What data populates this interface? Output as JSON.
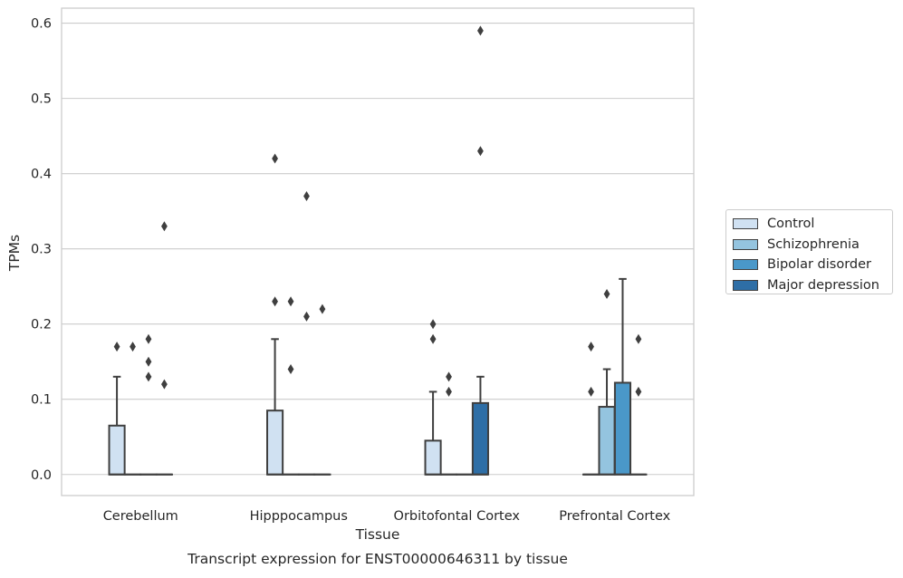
{
  "chart_data": {
    "type": "bar",
    "xlabel": "Tissue",
    "ylabel": "TPMs",
    "caption": "Transcript expression for ENST00000646311 by tissue",
    "ylim": [
      -0.028,
      0.62
    ],
    "yticks": [
      0.0,
      0.1,
      0.2,
      0.3,
      0.4,
      0.5,
      0.6
    ],
    "ytick_labels": [
      "0.0",
      "0.1",
      "0.2",
      "0.3",
      "0.4",
      "0.5",
      "0.6"
    ],
    "grid": "horizontal",
    "legend_position": "right",
    "categories": [
      "Cerebellum",
      "Hipppocampus",
      "Orbitofontal Cortex",
      "Prefrontal Cortex"
    ],
    "series": [
      {
        "name": "Control",
        "color": "#d0e1f2",
        "boxes": [
          {
            "q1": 0.0,
            "median": 0.0,
            "q3": 0.065,
            "whisker_low": 0.0,
            "whisker_high": 0.13,
            "outliers": [
              0.17
            ]
          },
          {
            "q1": 0.0,
            "median": 0.0,
            "q3": 0.085,
            "whisker_low": 0.0,
            "whisker_high": 0.18,
            "outliers": [
              0.23,
              0.42
            ]
          },
          {
            "q1": 0.0,
            "median": 0.0,
            "q3": 0.045,
            "whisker_low": 0.0,
            "whisker_high": 0.11,
            "outliers": [
              0.18,
              0.2
            ]
          },
          {
            "q1": 0.0,
            "median": 0.0,
            "q3": 0.0,
            "whisker_low": 0.0,
            "whisker_high": 0.0,
            "outliers": [
              0.11,
              0.17
            ]
          }
        ]
      },
      {
        "name": "Schizophrenia",
        "color": "#94c4df",
        "boxes": [
          {
            "q1": 0.0,
            "median": 0.0,
            "q3": 0.0,
            "whisker_low": 0.0,
            "whisker_high": 0.0,
            "outliers": [
              0.17
            ]
          },
          {
            "q1": 0.0,
            "median": 0.0,
            "q3": 0.0,
            "whisker_low": 0.0,
            "whisker_high": 0.0,
            "outliers": [
              0.14,
              0.23
            ]
          },
          {
            "q1": 0.0,
            "median": 0.0,
            "q3": 0.0,
            "whisker_low": 0.0,
            "whisker_high": 0.0,
            "outliers": [
              0.11,
              0.13
            ]
          },
          {
            "q1": 0.0,
            "median": 0.0,
            "q3": 0.09,
            "whisker_low": 0.0,
            "whisker_high": 0.14,
            "outliers": [
              0.24
            ]
          }
        ]
      },
      {
        "name": "Bipolar disorder",
        "color": "#4a98c9",
        "boxes": [
          {
            "q1": 0.0,
            "median": 0.0,
            "q3": 0.0,
            "whisker_low": 0.0,
            "whisker_high": 0.0,
            "outliers": [
              0.13,
              0.15,
              0.18
            ]
          },
          {
            "q1": 0.0,
            "median": 0.0,
            "q3": 0.0,
            "whisker_low": 0.0,
            "whisker_high": 0.0,
            "outliers": [
              0.21,
              0.37
            ]
          },
          {
            "q1": 0.0,
            "median": 0.0,
            "q3": 0.0,
            "whisker_low": 0.0,
            "whisker_high": 0.0,
            "outliers": []
          },
          {
            "q1": 0.0,
            "median": 0.0,
            "q3": 0.122,
            "whisker_low": 0.0,
            "whisker_high": 0.26,
            "outliers": []
          }
        ]
      },
      {
        "name": "Major depression",
        "color": "#2e6ea6",
        "boxes": [
          {
            "q1": 0.0,
            "median": 0.0,
            "q3": 0.0,
            "whisker_low": 0.0,
            "whisker_high": 0.0,
            "outliers": [
              0.12,
              0.33
            ]
          },
          {
            "q1": 0.0,
            "median": 0.0,
            "q3": 0.0,
            "whisker_low": 0.0,
            "whisker_high": 0.0,
            "outliers": [
              0.22
            ]
          },
          {
            "q1": 0.0,
            "median": 0.0,
            "q3": 0.095,
            "whisker_low": 0.0,
            "whisker_high": 0.13,
            "outliers": [
              0.43,
              0.59
            ]
          },
          {
            "q1": 0.0,
            "median": 0.0,
            "q3": 0.0,
            "whisker_low": 0.0,
            "whisker_high": 0.0,
            "outliers": [
              0.11,
              0.18
            ]
          }
        ]
      }
    ]
  }
}
